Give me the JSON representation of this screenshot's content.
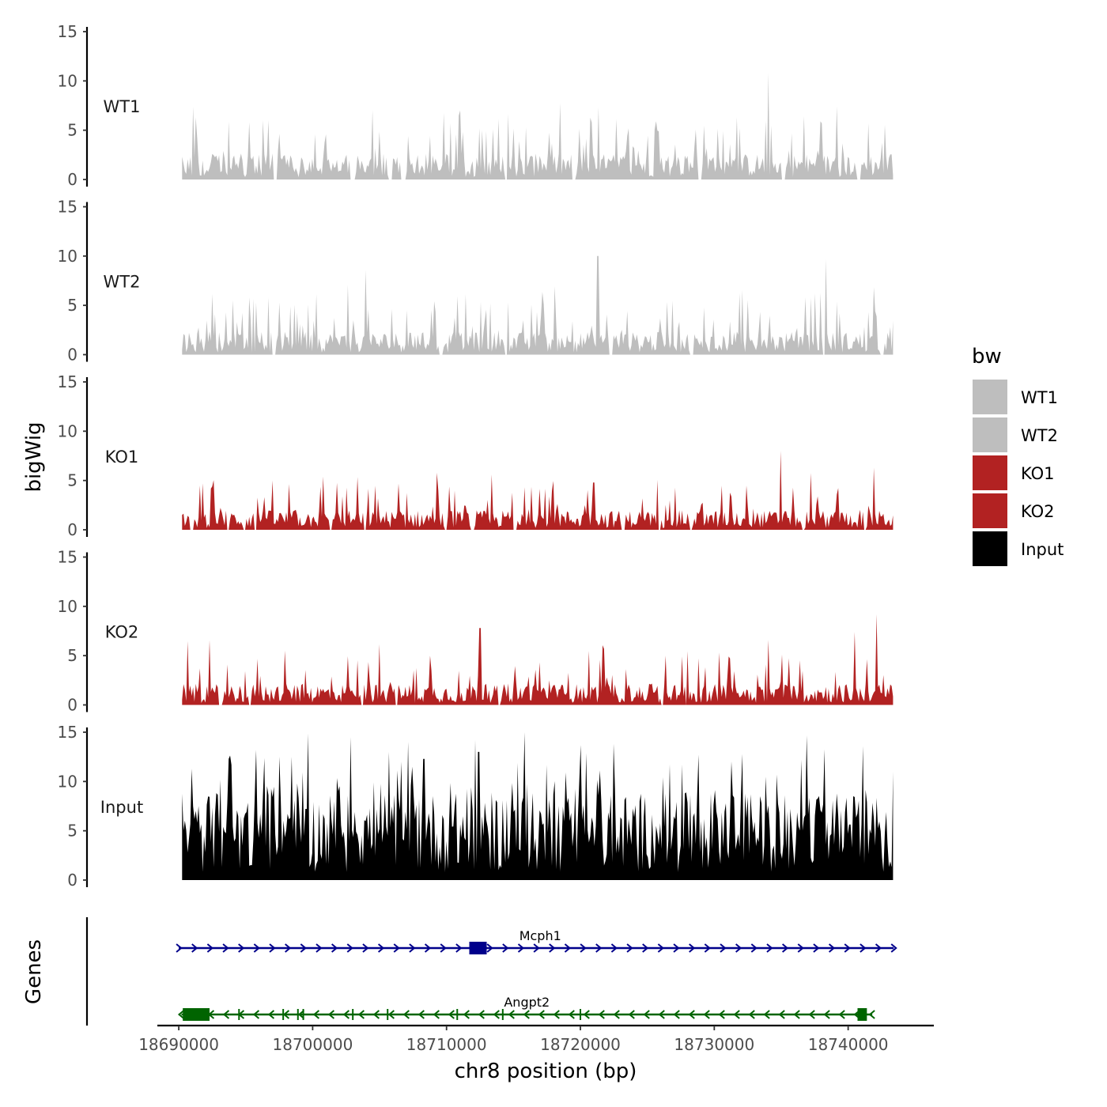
{
  "chart_data": {
    "type": "area",
    "title": "",
    "ylabel": "bigWig",
    "xlabel": "chr8 position (bp)",
    "genes_label": "Genes",
    "x_range": [
      18690250,
      18743350
    ],
    "xlim": [
      18688400,
      18746400
    ],
    "xticks": [
      18690000,
      18700000,
      18710000,
      18720000,
      18730000,
      18740000
    ],
    "xtick_labels": [
      "18690000",
      "18700000",
      "18710000",
      "18720000",
      "18730000",
      "18740000"
    ],
    "ylim": [
      0,
      15
    ],
    "yticks": [
      0,
      5,
      10,
      15
    ],
    "ytick_labels": [
      "0",
      "5",
      "10",
      "15"
    ],
    "legend": {
      "title": "bw",
      "position": "right",
      "entries": [
        {
          "label": "WT1",
          "color": "#bebebe"
        },
        {
          "label": "WT2",
          "color": "#bebebe"
        },
        {
          "label": "KO1",
          "color": "#b22222"
        },
        {
          "label": "KO2",
          "color": "#b22222"
        },
        {
          "label": "Input",
          "color": "#000000"
        }
      ]
    },
    "series": [
      {
        "name": "WT1",
        "color": "#bebebe",
        "mean": 1.6,
        "spike_rate": 0.2,
        "spike_max": 5.5,
        "peaks": [
          {
            "x": 18734000,
            "y": 10.8
          },
          {
            "x": 18711000,
            "y": 7.0
          },
          {
            "x": 18691300,
            "y": 6.3
          },
          {
            "x": 18696300,
            "y": 6.0
          }
        ],
        "gaps": [
          [
            18697100,
            18697400
          ],
          [
            18702800,
            18703200
          ],
          [
            18705600,
            18706000
          ],
          [
            18706600,
            18707000
          ],
          [
            18714300,
            18714600
          ],
          [
            18719400,
            18719700
          ],
          [
            18728800,
            18729100
          ],
          [
            18735000,
            18735300
          ],
          [
            18740600,
            18740900
          ]
        ]
      },
      {
        "name": "WT2",
        "color": "#bebebe",
        "mean": 1.4,
        "spike_rate": 0.2,
        "spike_max": 5.0,
        "peaks": [
          {
            "x": 18704000,
            "y": 8.6
          },
          {
            "x": 18721300,
            "y": 10.0
          },
          {
            "x": 18738300,
            "y": 9.7
          }
        ],
        "gaps": [
          [
            18697000,
            18697300
          ],
          [
            18709400,
            18709700
          ],
          [
            18714300,
            18714600
          ],
          [
            18722100,
            18722400
          ],
          [
            18728200,
            18728500
          ],
          [
            18738100,
            18738300
          ],
          [
            18742400,
            18742700
          ]
        ]
      },
      {
        "name": "KO1",
        "color": "#b22222",
        "mean": 1.2,
        "spike_rate": 0.16,
        "spike_max": 4.2,
        "peaks": [
          {
            "x": 18735000,
            "y": 8.0
          },
          {
            "x": 18741900,
            "y": 6.3
          },
          {
            "x": 18721000,
            "y": 4.8
          }
        ],
        "gaps": [
          [
            18690800,
            18691100
          ],
          [
            18693600,
            18693800
          ],
          [
            18694800,
            18695000
          ],
          [
            18695600,
            18695800
          ],
          [
            18701200,
            18701500
          ],
          [
            18703800,
            18704000
          ],
          [
            18709800,
            18710000
          ],
          [
            18711800,
            18712100
          ],
          [
            18715000,
            18715300
          ],
          [
            18723000,
            18723300
          ],
          [
            18725800,
            18726000
          ],
          [
            18728200,
            18728400
          ],
          [
            18736500,
            18736700
          ],
          [
            18741200,
            18741400
          ]
        ]
      },
      {
        "name": "KO2",
        "color": "#b22222",
        "mean": 1.3,
        "spike_rate": 0.16,
        "spike_max": 4.5,
        "peaks": [
          {
            "x": 18712500,
            "y": 7.8
          },
          {
            "x": 18742100,
            "y": 9.2
          },
          {
            "x": 18734000,
            "y": 6.6
          },
          {
            "x": 18740500,
            "y": 7.4
          }
        ],
        "gaps": [
          [
            18693000,
            18693300
          ],
          [
            18695200,
            18695400
          ],
          [
            18703600,
            18703800
          ],
          [
            18706200,
            18706400
          ],
          [
            18713800,
            18714000
          ],
          [
            18726000,
            18726200
          ],
          [
            18727800,
            18728000
          ]
        ]
      },
      {
        "name": "Input",
        "color": "#000000",
        "mean": 5.4,
        "spike_rate": 0.22,
        "spike_max": 6.0,
        "peaks": [
          {
            "x": 18702800,
            "y": 14.5
          },
          {
            "x": 18715800,
            "y": 15.0
          },
          {
            "x": 18741100,
            "y": 13.6
          },
          {
            "x": 18712400,
            "y": 13.0
          },
          {
            "x": 18708300,
            "y": 12.3
          },
          {
            "x": 18691000,
            "y": 11.3
          }
        ],
        "gaps": []
      }
    ],
    "genes": [
      {
        "name": "Mcph1",
        "strand": "+",
        "color": "#00008b",
        "start": 18690000,
        "end": 18743400,
        "exons": [
          [
            18711700,
            18713000
          ]
        ]
      },
      {
        "name": "Angpt2",
        "strand": "-",
        "color": "#006400",
        "start": 18690200,
        "end": 18741800,
        "exons": [
          [
            18690300,
            18692300
          ],
          [
            18740700,
            18741400
          ]
        ],
        "marks": [
          18694500,
          18697800,
          18698900,
          18699300,
          18703000,
          18705600,
          18710800,
          18714200,
          18720000
        ]
      }
    ]
  }
}
